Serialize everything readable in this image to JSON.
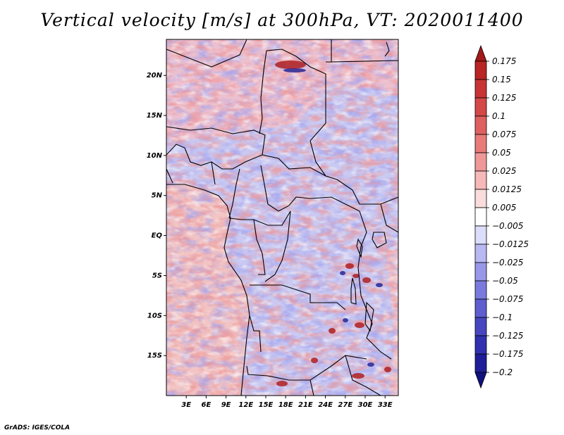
{
  "title": "Vertical velocity [m/s] at 300hPa, VT: 2020011400",
  "footer": "GrADS: IGES/COLA",
  "lat_labels": [
    "20N",
    "15N",
    "10N",
    "5N",
    "EQ",
    "5S",
    "10S",
    "15S"
  ],
  "lat_values": [
    20,
    15,
    10,
    5,
    0,
    -5,
    -10,
    -15
  ],
  "lon_labels": [
    "3E",
    "6E",
    "9E",
    "12E",
    "15E",
    "18E",
    "21E",
    "24E",
    "27E",
    "30E",
    "33E"
  ],
  "lon_values": [
    3,
    6,
    9,
    12,
    15,
    18,
    21,
    24,
    27,
    30,
    33
  ],
  "map_extent": {
    "lon_min": 0,
    "lon_max": 35,
    "lat_min": -20,
    "lat_max": 24.5
  },
  "colorbar": {
    "labels": [
      "0.175",
      "0.15",
      "0.125",
      "0.1",
      "0.075",
      "0.05",
      "0.025",
      "0.0125",
      "0.005",
      "−0.005",
      "−0.0125",
      "−0.025",
      "−0.05",
      "−0.075",
      "−0.1",
      "−0.125",
      "−0.175",
      "−0.2"
    ],
    "colors": [
      "#a31818",
      "#b92424",
      "#c83434",
      "#d44848",
      "#df6060",
      "#e97a7a",
      "#f09898",
      "#f6b8b8",
      "#fbdcdc",
      "#ffffff",
      "#dcdcfb",
      "#b8b8f3",
      "#9898ea",
      "#7a7ade",
      "#5e5ed0",
      "#4646c0",
      "#3030b0",
      "#1e1e98",
      "#10107e"
    ]
  },
  "colors": {
    "ocean_base": "#f4c8c8",
    "land_base": "#b8b8ee",
    "border": "#000000"
  }
}
